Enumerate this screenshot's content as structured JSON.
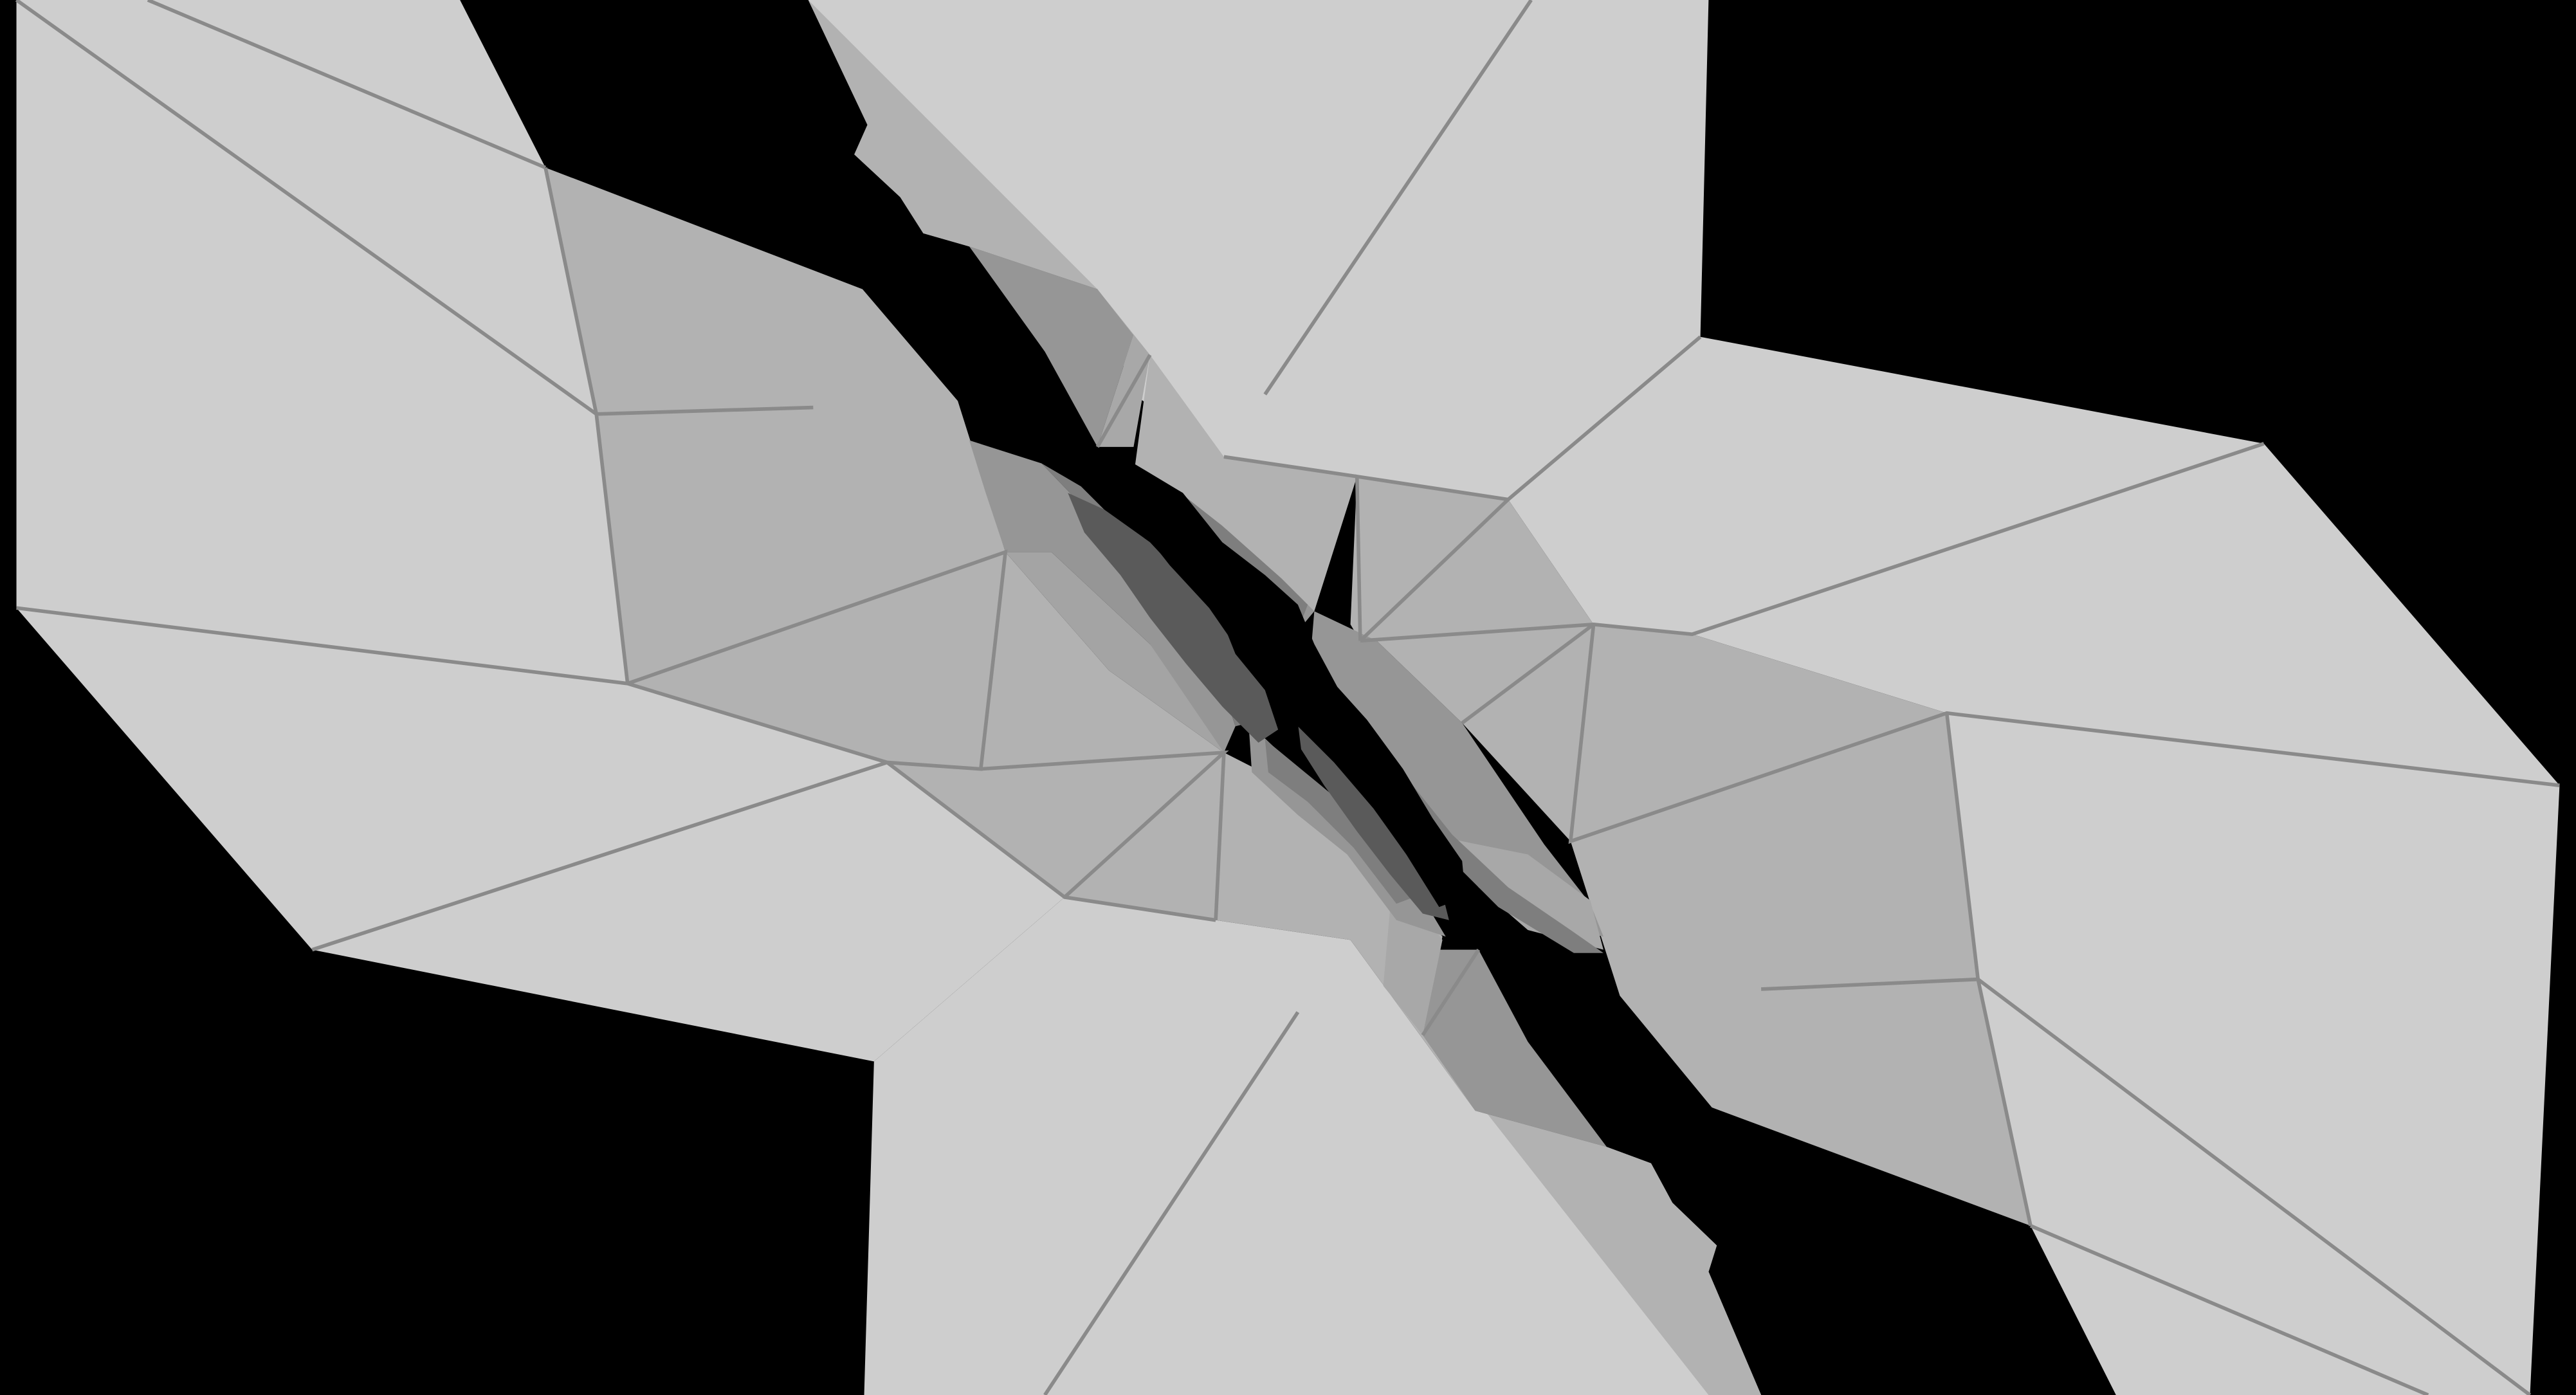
{
  "render": {
    "kind": "3d-mesh-viewport",
    "background_color": "#000000",
    "shading": {
      "outer_face": "#cecece",
      "inner_face": "#b2b2b2",
      "crevice_light": "#969696",
      "crevice_mid": "#7e7e7e",
      "crevice_dark": "#5a5a5a",
      "edge_line": "#8a8a8a"
    }
  }
}
